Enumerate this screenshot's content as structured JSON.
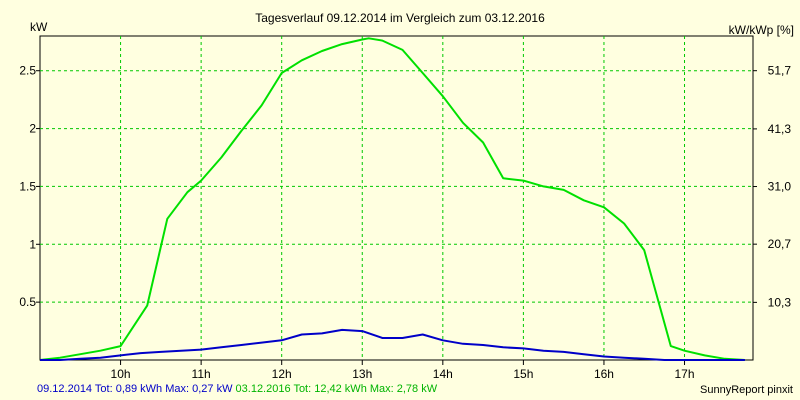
{
  "chart_data": {
    "type": "line",
    "title": "Tagesverlauf 09.12.2014 im Vergleich zum 03.12.2016",
    "ylabel": "kW",
    "ylabel_right": "kW/kWp [%]",
    "ylim": [
      0,
      2.8
    ],
    "yticks": [
      0.5,
      1,
      1.5,
      2,
      2.5
    ],
    "ytick_labels": [
      "0.5",
      "1",
      "1.5",
      "2",
      "2.5"
    ],
    "y2ticks": [
      10.3,
      20.7,
      31.0,
      41.3,
      51.7
    ],
    "y2tick_labels": [
      "10,3",
      "20,7",
      "31,0",
      "41,3",
      "51,7"
    ],
    "y2lim": [
      0,
      57.9
    ],
    "xlim": [
      9.0,
      17.85
    ],
    "xticks": [
      10,
      11,
      12,
      13,
      14,
      15,
      16,
      17
    ],
    "xtick_labels": [
      "10h",
      "11h",
      "12h",
      "13h",
      "14h",
      "15h",
      "16h",
      "17h"
    ],
    "grid": true,
    "series": [
      {
        "name": "09.12.2014",
        "color": "#0000c8",
        "x": [
          9.0,
          9.25,
          9.5,
          9.75,
          10.0,
          10.25,
          10.5,
          10.75,
          11.0,
          11.25,
          11.5,
          11.75,
          12.0,
          12.25,
          12.5,
          12.75,
          13.0,
          13.25,
          13.5,
          13.75,
          14.0,
          14.25,
          14.5,
          14.75,
          15.0,
          15.25,
          15.5,
          15.75,
          16.0,
          16.25,
          16.5,
          16.75,
          17.0,
          17.25,
          17.5,
          17.75
        ],
        "y": [
          0,
          0,
          0.01,
          0.02,
          0.04,
          0.06,
          0.07,
          0.08,
          0.09,
          0.11,
          0.13,
          0.15,
          0.17,
          0.22,
          0.23,
          0.26,
          0.25,
          0.19,
          0.19,
          0.22,
          0.17,
          0.14,
          0.13,
          0.11,
          0.1,
          0.08,
          0.07,
          0.05,
          0.03,
          0.02,
          0.01,
          0,
          0,
          0,
          0,
          0
        ]
      },
      {
        "name": "03.12.2016",
        "color": "#00e000",
        "x": [
          9.0,
          9.25,
          9.5,
          9.75,
          10.0,
          10.33,
          10.58,
          10.83,
          11.0,
          11.25,
          11.5,
          11.75,
          12.0,
          12.25,
          12.5,
          12.75,
          13.0,
          13.08,
          13.25,
          13.5,
          13.75,
          14.0,
          14.25,
          14.5,
          14.75,
          15.0,
          15.25,
          15.5,
          15.75,
          16.0,
          16.25,
          16.5,
          16.83,
          17.0,
          17.25,
          17.5,
          17.75
        ],
        "y": [
          0,
          0.02,
          0.05,
          0.08,
          0.12,
          0.47,
          1.22,
          1.45,
          1.55,
          1.75,
          1.98,
          2.2,
          2.48,
          2.59,
          2.67,
          2.73,
          2.77,
          2.78,
          2.76,
          2.68,
          2.48,
          2.28,
          2.05,
          1.88,
          1.57,
          1.55,
          1.5,
          1.47,
          1.38,
          1.32,
          1.18,
          0.95,
          0.12,
          0.08,
          0.04,
          0.01,
          0
        ]
      }
    ],
    "footer": {
      "series1": "09.12.2014 Tot: 0,89 kWh Max: 0,27 kW",
      "series2": "03.12.2016 Tot: 12,42 kWh Max: 2,78 kW"
    },
    "credit": "SunnyReport pinxit"
  }
}
